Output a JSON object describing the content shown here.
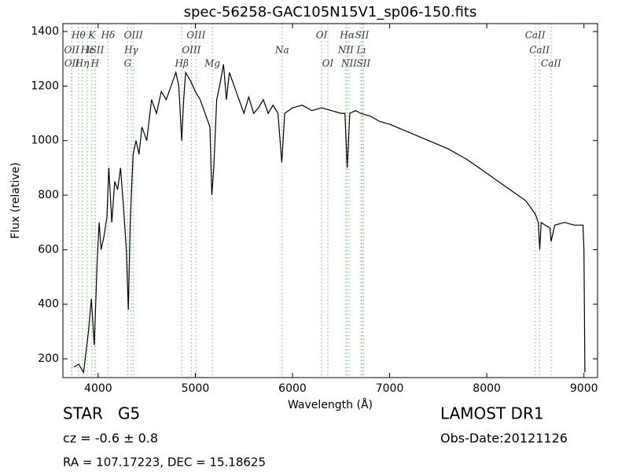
{
  "chart_data": {
    "type": "line",
    "title": "spec-56258-GAC105N15V1_sp06-150.fits",
    "x_label": "Wavelength (Å)",
    "y_label": "Flux (relative)",
    "color": "#000000",
    "line_color": "#7fcf7f",
    "xlim": [
      3637,
      9140
    ],
    "ylim": [
      131,
      1429
    ],
    "xticks": [
      4000,
      5000,
      6000,
      7000,
      8000,
      9000
    ],
    "yticks": [
      200,
      400,
      600,
      800,
      1000,
      1200,
      1400
    ],
    "x": [
      3750,
      3800,
      3850,
      3900,
      3930,
      3960,
      3990,
      4010,
      4030,
      4060,
      4090,
      4110,
      4140,
      4170,
      4200,
      4230,
      4260,
      4290,
      4310,
      4330,
      4360,
      4390,
      4420,
      4450,
      4500,
      4550,
      4600,
      4650,
      4700,
      4750,
      4800,
      4830,
      4860,
      4880,
      4900,
      4950,
      5000,
      5050,
      5100,
      5150,
      5170,
      5190,
      5220,
      5250,
      5290,
      5320,
      5350,
      5400,
      5450,
      5500,
      5550,
      5600,
      5650,
      5700,
      5750,
      5800,
      5850,
      5890,
      5920,
      6000,
      6100,
      6200,
      6300,
      6400,
      6500,
      6540,
      6563,
      6590,
      6650,
      6700,
      6800,
      6900,
      7000,
      7200,
      7400,
      7600,
      7800,
      8000,
      8200,
      8400,
      8500,
      8530,
      8545,
      8560,
      8600,
      8650,
      8662,
      8700,
      8800,
      8900,
      8990,
      9000,
      9010
    ],
    "values": [
      170,
      180,
      150,
      300,
      420,
      250,
      560,
      700,
      600,
      650,
      720,
      900,
      700,
      850,
      820,
      900,
      760,
      600,
      380,
      700,
      950,
      1000,
      950,
      1050,
      1000,
      1150,
      1100,
      1180,
      1150,
      1200,
      1250,
      1200,
      1000,
      1150,
      1250,
      1220,
      1180,
      1150,
      1100,
      1050,
      800,
      900,
      1150,
      1200,
      1280,
      1150,
      1250,
      1200,
      1150,
      1100,
      1160,
      1100,
      1120,
      1150,
      1100,
      1130,
      1100,
      920,
      1100,
      1120,
      1130,
      1110,
      1120,
      1110,
      1100,
      1100,
      900,
      1100,
      1110,
      1100,
      1090,
      1070,
      1060,
      1030,
      1000,
      970,
      930,
      880,
      830,
      780,
      730,
      700,
      600,
      700,
      690,
      680,
      630,
      690,
      700,
      690,
      690,
      600,
      150
    ],
    "spectral_lines": [
      [
        {
          "label": "Hθ",
          "wavelength": 3798
        },
        {
          "label": "K",
          "wavelength": 3934
        },
        {
          "label": "Hδ",
          "wavelength": 4102
        },
        {
          "label": "OIII",
          "wavelength": 4363
        },
        {
          "label": "OIII",
          "wavelength": 5007
        },
        {
          "label": "OI",
          "wavelength": 6300
        },
        {
          "label": "Hα",
          "wavelength": 6563
        },
        {
          "label": "SII",
          "wavelength": 6716
        },
        {
          "label": "CaII",
          "wavelength": 8498
        }
      ],
      [
        {
          "label": "OII",
          "wavelength": 3727
        },
        {
          "label": "Hε",
          "wavelength": 3889
        },
        {
          "label": "ISII",
          "wavelength": 3970
        },
        {
          "label": "Hγ",
          "wavelength": 4340
        },
        {
          "label": "OIII",
          "wavelength": 4959
        },
        {
          "label": "Na",
          "wavelength": 5893
        },
        {
          "label": "NII",
          "wavelength": 6548
        },
        {
          "label": "Lı",
          "wavelength": 6707
        },
        {
          "label": "CaII",
          "wavelength": 8542
        }
      ],
      [
        {
          "label": "OII",
          "wavelength": 3729
        },
        {
          "label": "Hη",
          "wavelength": 3835
        },
        {
          "label": "H",
          "wavelength": 3968
        },
        {
          "label": "G",
          "wavelength": 4304
        },
        {
          "label": "Hβ",
          "wavelength": 4861
        },
        {
          "label": "Mg",
          "wavelength": 5175
        },
        {
          "label": "OI",
          "wavelength": 6364
        },
        {
          "label": "NII",
          "wavelength": 6583
        },
        {
          "label": "SII",
          "wavelength": 6731
        },
        {
          "label": "CaII",
          "wavelength": 8662
        }
      ]
    ],
    "object_class": "STAR   G5",
    "survey": "LAMOST DR1",
    "redshift": "cz = -0.6 ± 0.8",
    "obs_date": "Obs-Date:20121126",
    "coordinates": "RA = 107.17223, DEC = 15.18625"
  }
}
